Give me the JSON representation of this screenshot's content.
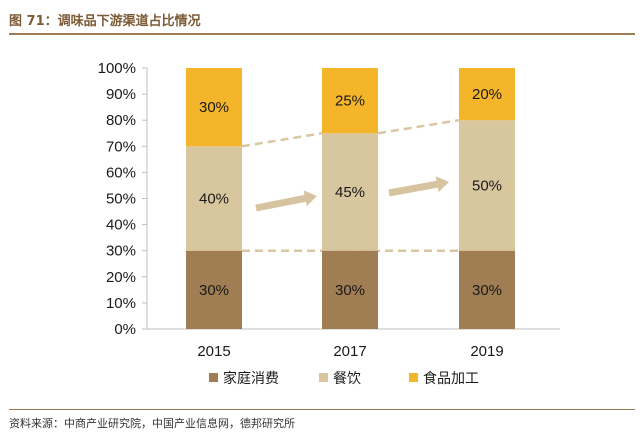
{
  "figure": {
    "title": "图 71：调味品下游渠道占比情况",
    "source": "资料来源：中商产业研究院，中国产业信息网，德邦研究所"
  },
  "colors": {
    "home": "#a07d52",
    "dining": "#d8c69f",
    "food": "#f5b52a",
    "connector": "#d9c7a3",
    "arrow": "#d6c39f",
    "axis": "#bfbfbf",
    "text": "#1a1a1a",
    "brand": "#7b5a35"
  },
  "chart_data": {
    "type": "bar",
    "stacked": true,
    "categories": [
      "2015",
      "2017",
      "2019"
    ],
    "series": [
      {
        "name": "家庭消费",
        "values": [
          30,
          30,
          30
        ],
        "color": "#a07d52"
      },
      {
        "name": "餐饮",
        "values": [
          40,
          45,
          50
        ],
        "color": "#d8c69f"
      },
      {
        "name": "食品加工",
        "values": [
          30,
          25,
          20
        ],
        "color": "#f5b52a"
      }
    ],
    "data_labels": [
      [
        "30%",
        "30%",
        "30%"
      ],
      [
        "40%",
        "45%",
        "50%"
      ],
      [
        "30%",
        "25%",
        "20%"
      ]
    ],
    "y_ticks": [
      "0%",
      "10%",
      "20%",
      "30%",
      "40%",
      "50%",
      "60%",
      "70%",
      "80%",
      "90%",
      "100%"
    ],
    "ylim": [
      0,
      100
    ],
    "legend_position": "bottom",
    "grid": false,
    "annotations": [
      "connector lines between stack boundaries",
      "arrows pointing right between bars"
    ]
  }
}
